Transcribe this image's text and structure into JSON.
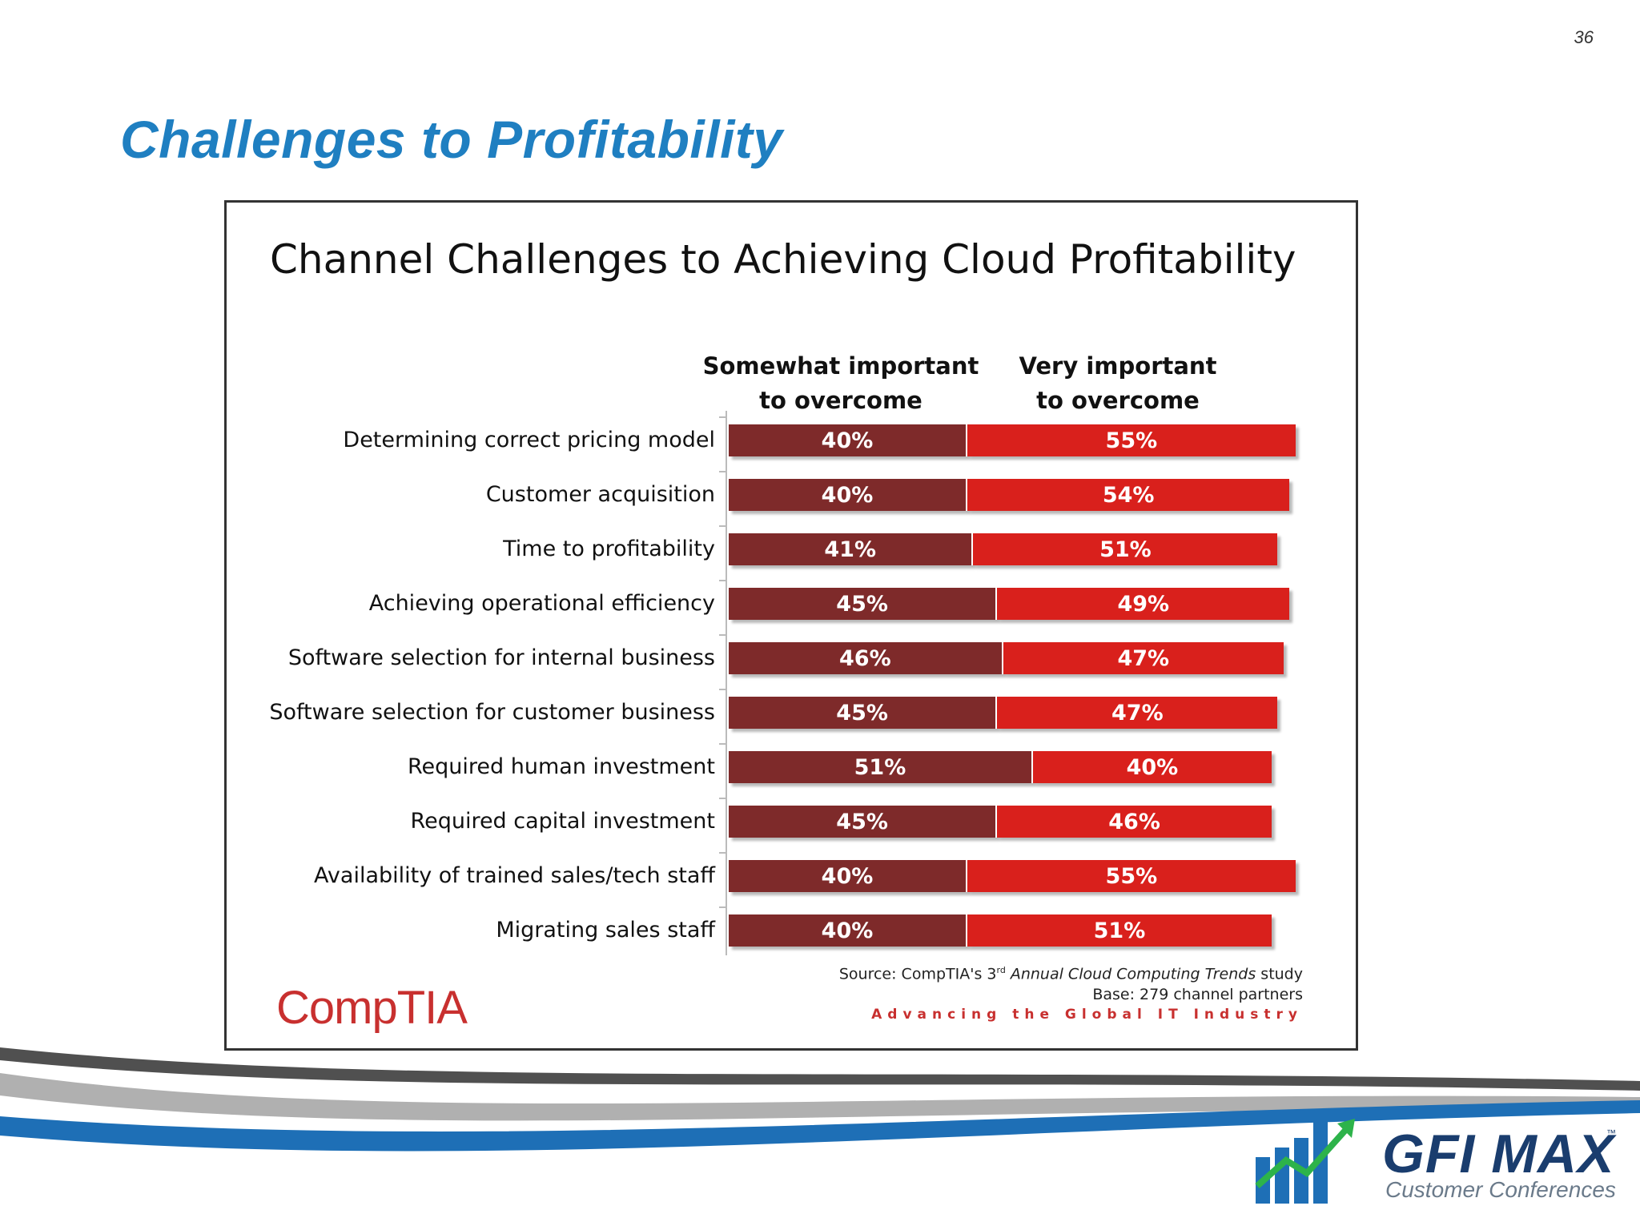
{
  "page_number": "36",
  "slide_title": "Challenges to Profitability",
  "colors": {
    "somewhat": "#7e2a2a",
    "very": "#d9201c",
    "title_blue": "#1f7fc1",
    "brand_red": "#c8302f"
  },
  "chart_data": {
    "type": "bar",
    "orientation": "horizontal",
    "stacked": true,
    "title": "Channel Challenges to Achieving Cloud Profitability",
    "categories": [
      "Determining correct pricing model",
      "Customer acquisition",
      "Time to profitability",
      "Achieving operational efficiency",
      "Software selection for internal business",
      "Software selection for customer business",
      "Required human investment",
      "Required capital investment",
      "Availability of trained sales/tech staff",
      "Migrating sales staff"
    ],
    "series": [
      {
        "name": "Somewhat important to overcome",
        "name_lines": [
          "Somewhat important",
          "to overcome"
        ],
        "values": [
          40,
          40,
          41,
          45,
          46,
          45,
          51,
          45,
          40,
          40
        ]
      },
      {
        "name": "Very important to overcome",
        "name_lines": [
          "Very important",
          "to overcome"
        ],
        "values": [
          55,
          54,
          51,
          49,
          47,
          47,
          40,
          46,
          55,
          51
        ]
      }
    ],
    "value_suffix": "%",
    "legend": "top"
  },
  "source": {
    "prefix": "Source: CompTIA's 3",
    "superscript": "rd",
    "study": " Annual Cloud Computing Trends",
    "suffix": " study",
    "base": "Base: 279 channel partners",
    "tagline": "Advancing the Global IT Industry"
  },
  "logos": {
    "comptia": "CompTIA",
    "gfi": "GFI MAX",
    "gfi_sub": "Customer Conferences",
    "tm": "™"
  }
}
